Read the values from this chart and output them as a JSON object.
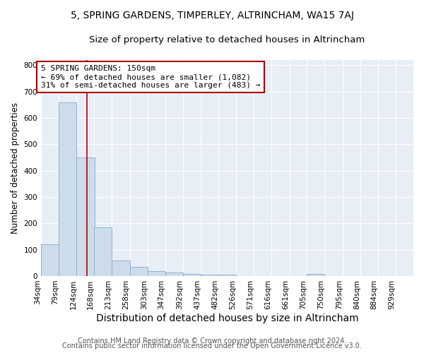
{
  "title": "5, SPRING GARDENS, TIMPERLEY, ALTRINCHAM, WA15 7AJ",
  "subtitle": "Size of property relative to detached houses in Altrincham",
  "xlabel": "Distribution of detached houses by size in Altrincham",
  "ylabel": "Number of detached properties",
  "footnote1": "Contains HM Land Registry data © Crown copyright and database right 2024.",
  "footnote2": "Contains public sector information licensed under the Open Government Licence v3.0.",
  "bin_edges": [
    34,
    79,
    124,
    168,
    213,
    258,
    303,
    347,
    392,
    437,
    482,
    526,
    571,
    616,
    661,
    705,
    750,
    795,
    840,
    884,
    929
  ],
  "bar_heights": [
    120,
    660,
    450,
    185,
    58,
    35,
    18,
    12,
    8,
    4,
    6,
    0,
    0,
    0,
    0,
    8,
    0,
    0,
    0,
    0
  ],
  "bar_color": "#cddceb",
  "bar_edge_color": "#8eb4d0",
  "property_line_x": 150,
  "property_line_color": "#aa0000",
  "annotation_text": "5 SPRING GARDENS: 150sqm\n← 69% of detached houses are smaller (1,082)\n31% of semi-detached houses are larger (483) →",
  "annotation_box_color": "white",
  "annotation_box_edge_color": "#aa0000",
  "ylim": [
    0,
    820
  ],
  "yticks": [
    0,
    100,
    200,
    300,
    400,
    500,
    600,
    700,
    800
  ],
  "background_color": "#e8eef6",
  "title_fontsize": 10,
  "subtitle_fontsize": 9.5,
  "xlabel_fontsize": 10,
  "ylabel_fontsize": 8.5,
  "tick_fontsize": 7.5,
  "annotation_fontsize": 8,
  "footnote_fontsize": 7
}
